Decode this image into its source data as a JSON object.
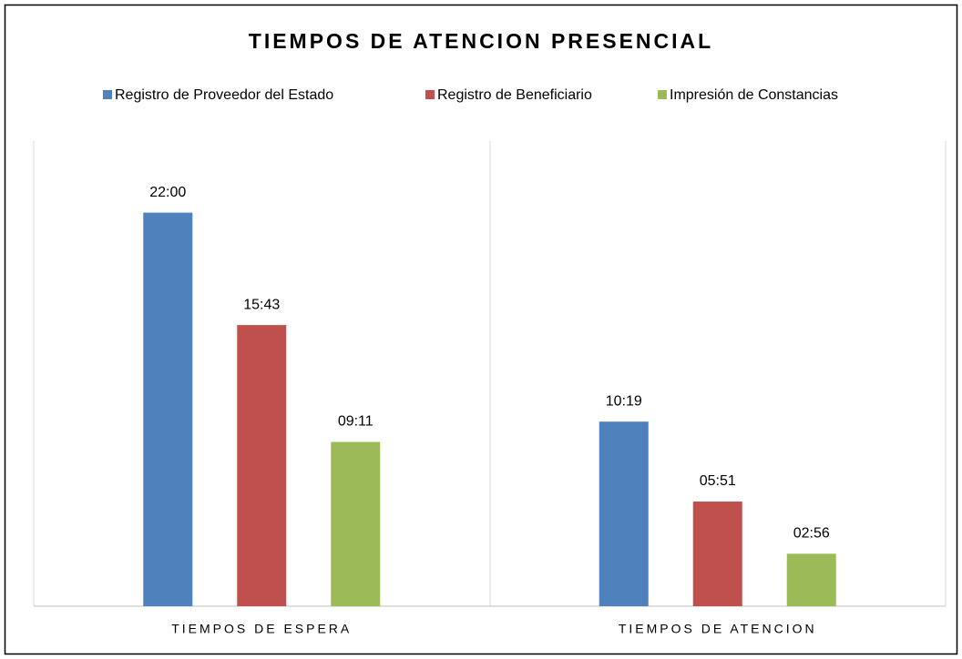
{
  "chart_data": {
    "type": "bar",
    "title": "TIEMPOS DE ATENCION PRESENCIAL",
    "categories": [
      "TIEMPOS DE ESPERA",
      "TIEMPOS DE ATENCION"
    ],
    "series": [
      {
        "name": "Registro de Proveedor del Estado",
        "color": "#4f81bd",
        "values": [
          1320,
          619
        ],
        "value_labels": [
          "22:00",
          "10:19"
        ]
      },
      {
        "name": "Registro de Beneficiario",
        "color": "#c0504d",
        "values": [
          943,
          351
        ],
        "value_labels": [
          "15:43",
          "05:51"
        ]
      },
      {
        "name": "Impresión de Constancias",
        "color": "#9bbb59",
        "values": [
          551,
          176
        ],
        "value_labels": [
          "09:11",
          "02:56"
        ]
      }
    ],
    "ylim": [
      0,
      1560
    ],
    "legend": "top"
  }
}
